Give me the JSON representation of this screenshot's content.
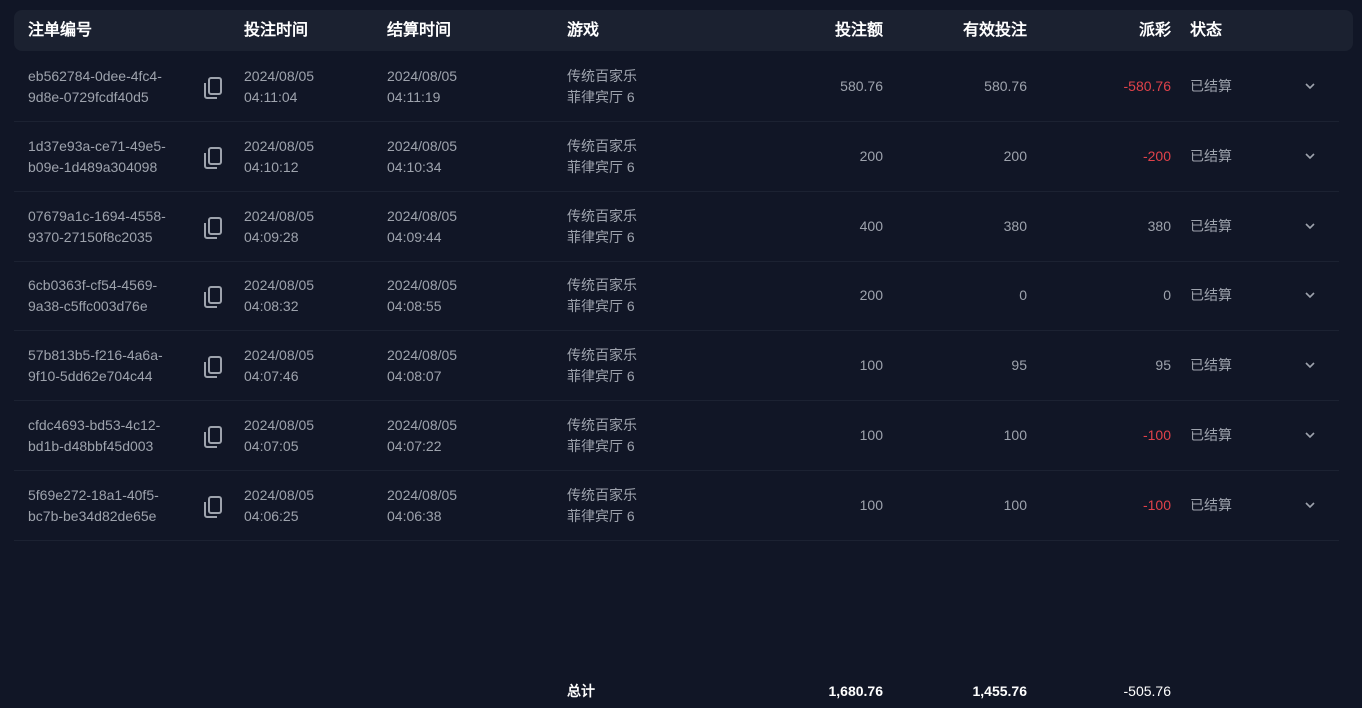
{
  "headers": {
    "id": "注单编号",
    "bet_time": "投注时间",
    "settle_time": "结算时间",
    "game": "游戏",
    "amount": "投注额",
    "valid": "有效投注",
    "payout": "派彩",
    "status": "状态"
  },
  "rows": [
    {
      "id1": "eb562784-0dee-4fc4-",
      "id2": "9d8e-0729fcdf40d5",
      "bd": "2024/08/05",
      "bt": "04:11:04",
      "sd": "2024/08/05",
      "st": "04:11:19",
      "g1": "传统百家乐",
      "g2": "菲律宾厅 6",
      "amount": "580.76",
      "valid": "580.76",
      "payout": "-580.76",
      "neg": true,
      "status": "已结算"
    },
    {
      "id1": "1d37e93a-ce71-49e5-",
      "id2": "b09e-1d489a304098",
      "bd": "2024/08/05",
      "bt": "04:10:12",
      "sd": "2024/08/05",
      "st": "04:10:34",
      "g1": "传统百家乐",
      "g2": "菲律宾厅 6",
      "amount": "200",
      "valid": "200",
      "payout": "-200",
      "neg": true,
      "status": "已结算"
    },
    {
      "id1": "07679a1c-1694-4558-",
      "id2": "9370-27150f8c2035",
      "bd": "2024/08/05",
      "bt": "04:09:28",
      "sd": "2024/08/05",
      "st": "04:09:44",
      "g1": "传统百家乐",
      "g2": "菲律宾厅 6",
      "amount": "400",
      "valid": "380",
      "payout": "380",
      "neg": false,
      "status": "已结算"
    },
    {
      "id1": "6cb0363f-cf54-4569-",
      "id2": "9a38-c5ffc003d76e",
      "bd": "2024/08/05",
      "bt": "04:08:32",
      "sd": "2024/08/05",
      "st": "04:08:55",
      "g1": "传统百家乐",
      "g2": "菲律宾厅 6",
      "amount": "200",
      "valid": "0",
      "payout": "0",
      "neg": false,
      "status": "已结算"
    },
    {
      "id1": "57b813b5-f216-4a6a-",
      "id2": "9f10-5dd62e704c44",
      "bd": "2024/08/05",
      "bt": "04:07:46",
      "sd": "2024/08/05",
      "st": "04:08:07",
      "g1": "传统百家乐",
      "g2": "菲律宾厅 6",
      "amount": "100",
      "valid": "95",
      "payout": "95",
      "neg": false,
      "status": "已结算"
    },
    {
      "id1": "cfdc4693-bd53-4c12-",
      "id2": "bd1b-d48bbf45d003",
      "bd": "2024/08/05",
      "bt": "04:07:05",
      "sd": "2024/08/05",
      "st": "04:07:22",
      "g1": "传统百家乐",
      "g2": "菲律宾厅 6",
      "amount": "100",
      "valid": "100",
      "payout": "-100",
      "neg": true,
      "status": "已结算"
    },
    {
      "id1": "5f69e272-18a1-40f5-",
      "id2": "bc7b-be34d82de65e",
      "bd": "2024/08/05",
      "bt": "04:06:25",
      "sd": "2024/08/05",
      "st": "04:06:38",
      "g1": "传统百家乐",
      "g2": "菲律宾厅 6",
      "amount": "100",
      "valid": "100",
      "payout": "-100",
      "neg": true,
      "status": "已结算"
    }
  ],
  "totals": {
    "label": "总计",
    "amount": "1,680.76",
    "valid": "1,455.76",
    "payout": "-505.76"
  },
  "colors": {
    "negative": "#e0424a",
    "background": "#111626",
    "header": "#1b2130"
  }
}
